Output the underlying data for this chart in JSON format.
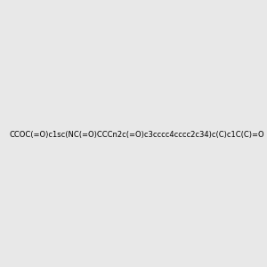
{
  "smiles": "CCOC(=O)c1sc(NC(=O)CCCn2c(=O)c3cccc4cccc2c34)c(C)c1C(C)=O",
  "title": "",
  "bg_color": "#e8e8e8",
  "img_size": [
    300,
    300
  ]
}
